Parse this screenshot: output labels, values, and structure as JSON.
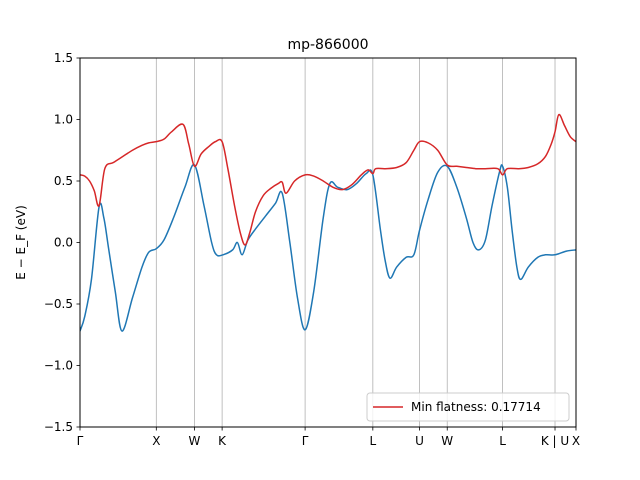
{
  "chart_data": {
    "type": "line",
    "title": "mp-866000",
    "ylabel": "E − E_F (eV)",
    "xlabel": "",
    "ylim": [
      -1.5,
      1.5
    ],
    "xlim": [
      0,
      5.2
    ],
    "grid": false,
    "legend_position": "bottom-right",
    "yticks": [
      -1.5,
      -1.0,
      -0.5,
      0.0,
      0.5,
      1.0,
      1.5
    ],
    "ytick_labels": [
      "−1.5",
      "−1.0",
      "−0.5",
      "0.0",
      "0.5",
      "1.0",
      "1.5"
    ],
    "kpoints": [
      {
        "x": 0.0,
        "label": "Γ"
      },
      {
        "x": 0.8,
        "label": "X"
      },
      {
        "x": 1.2,
        "label": "W"
      },
      {
        "x": 1.49,
        "label": "K"
      },
      {
        "x": 2.36,
        "label": "Γ"
      },
      {
        "x": 3.07,
        "label": "L"
      },
      {
        "x": 3.56,
        "label": "U"
      },
      {
        "x": 3.85,
        "label": "W"
      },
      {
        "x": 4.43,
        "label": "L"
      },
      {
        "x": 4.98,
        "label": "K | U"
      },
      {
        "x": 5.2,
        "label": "X"
      }
    ],
    "series": [
      {
        "name": "",
        "color": "#1f77b4",
        "points": [
          [
            0.0,
            -0.72
          ],
          [
            0.05,
            -0.6
          ],
          [
            0.12,
            -0.3
          ],
          [
            0.2,
            0.29
          ],
          [
            0.25,
            0.2
          ],
          [
            0.3,
            -0.05
          ],
          [
            0.37,
            -0.4
          ],
          [
            0.44,
            -0.72
          ],
          [
            0.55,
            -0.45
          ],
          [
            0.65,
            -0.2
          ],
          [
            0.72,
            -0.08
          ],
          [
            0.8,
            -0.05
          ],
          [
            0.88,
            0.02
          ],
          [
            0.98,
            0.2
          ],
          [
            1.1,
            0.45
          ],
          [
            1.2,
            0.63
          ],
          [
            1.3,
            0.3
          ],
          [
            1.38,
            0.0
          ],
          [
            1.43,
            -0.1
          ],
          [
            1.5,
            -0.1
          ],
          [
            1.6,
            -0.06
          ],
          [
            1.65,
            0.0
          ],
          [
            1.7,
            -0.1
          ],
          [
            1.76,
            0.02
          ],
          [
            1.85,
            0.12
          ],
          [
            1.95,
            0.22
          ],
          [
            2.05,
            0.32
          ],
          [
            2.12,
            0.4
          ],
          [
            2.2,
            0.0
          ],
          [
            2.28,
            -0.45
          ],
          [
            2.36,
            -0.71
          ],
          [
            2.45,
            -0.4
          ],
          [
            2.55,
            0.2
          ],
          [
            2.62,
            0.48
          ],
          [
            2.7,
            0.45
          ],
          [
            2.8,
            0.43
          ],
          [
            2.9,
            0.48
          ],
          [
            3.0,
            0.56
          ],
          [
            3.07,
            0.55
          ],
          [
            3.15,
            0.1
          ],
          [
            3.2,
            -0.15
          ],
          [
            3.25,
            -0.29
          ],
          [
            3.32,
            -0.2
          ],
          [
            3.42,
            -0.12
          ],
          [
            3.5,
            -0.1
          ],
          [
            3.56,
            0.1
          ],
          [
            3.65,
            0.35
          ],
          [
            3.75,
            0.57
          ],
          [
            3.85,
            0.62
          ],
          [
            3.95,
            0.45
          ],
          [
            4.05,
            0.2
          ],
          [
            4.12,
            0.0
          ],
          [
            4.18,
            -0.06
          ],
          [
            4.25,
            0.02
          ],
          [
            4.32,
            0.3
          ],
          [
            4.4,
            0.58
          ],
          [
            4.43,
            0.62
          ],
          [
            4.48,
            0.45
          ],
          [
            4.53,
            0.1
          ],
          [
            4.58,
            -0.2
          ],
          [
            4.62,
            -0.3
          ],
          [
            4.7,
            -0.2
          ],
          [
            4.8,
            -0.12
          ],
          [
            4.88,
            -0.1
          ],
          [
            4.98,
            -0.1
          ],
          [
            5.1,
            -0.07
          ],
          [
            5.2,
            -0.06
          ]
        ]
      },
      {
        "name": "Min flatness: 0.17714",
        "color": "#d62728",
        "points": [
          [
            0.0,
            0.55
          ],
          [
            0.05,
            0.54
          ],
          [
            0.1,
            0.5
          ],
          [
            0.15,
            0.42
          ],
          [
            0.2,
            0.3
          ],
          [
            0.26,
            0.6
          ],
          [
            0.35,
            0.65
          ],
          [
            0.45,
            0.7
          ],
          [
            0.55,
            0.75
          ],
          [
            0.65,
            0.79
          ],
          [
            0.72,
            0.81
          ],
          [
            0.8,
            0.82
          ],
          [
            0.88,
            0.84
          ],
          [
            0.96,
            0.9
          ],
          [
            1.08,
            0.96
          ],
          [
            1.14,
            0.8
          ],
          [
            1.2,
            0.62
          ],
          [
            1.27,
            0.72
          ],
          [
            1.35,
            0.78
          ],
          [
            1.42,
            0.82
          ],
          [
            1.49,
            0.82
          ],
          [
            1.55,
            0.6
          ],
          [
            1.62,
            0.3
          ],
          [
            1.68,
            0.08
          ],
          [
            1.73,
            -0.02
          ],
          [
            1.78,
            0.08
          ],
          [
            1.84,
            0.25
          ],
          [
            1.92,
            0.38
          ],
          [
            2.0,
            0.44
          ],
          [
            2.08,
            0.48
          ],
          [
            2.12,
            0.49
          ],
          [
            2.16,
            0.4
          ],
          [
            2.25,
            0.5
          ],
          [
            2.36,
            0.55
          ],
          [
            2.45,
            0.54
          ],
          [
            2.55,
            0.5
          ],
          [
            2.65,
            0.45
          ],
          [
            2.75,
            0.43
          ],
          [
            2.85,
            0.47
          ],
          [
            2.95,
            0.55
          ],
          [
            3.02,
            0.59
          ],
          [
            3.07,
            0.56
          ],
          [
            3.1,
            0.6
          ],
          [
            3.2,
            0.6
          ],
          [
            3.32,
            0.61
          ],
          [
            3.42,
            0.65
          ],
          [
            3.5,
            0.75
          ],
          [
            3.56,
            0.82
          ],
          [
            3.65,
            0.81
          ],
          [
            3.75,
            0.75
          ],
          [
            3.85,
            0.63
          ],
          [
            3.95,
            0.62
          ],
          [
            4.05,
            0.61
          ],
          [
            4.15,
            0.6
          ],
          [
            4.25,
            0.6
          ],
          [
            4.38,
            0.6
          ],
          [
            4.43,
            0.55
          ],
          [
            4.48,
            0.6
          ],
          [
            4.6,
            0.6
          ],
          [
            4.7,
            0.61
          ],
          [
            4.8,
            0.64
          ],
          [
            4.88,
            0.7
          ],
          [
            4.94,
            0.8
          ],
          [
            4.98,
            0.9
          ],
          [
            5.02,
            1.04
          ],
          [
            5.08,
            0.95
          ],
          [
            5.14,
            0.86
          ],
          [
            5.2,
            0.82
          ]
        ]
      }
    ]
  }
}
